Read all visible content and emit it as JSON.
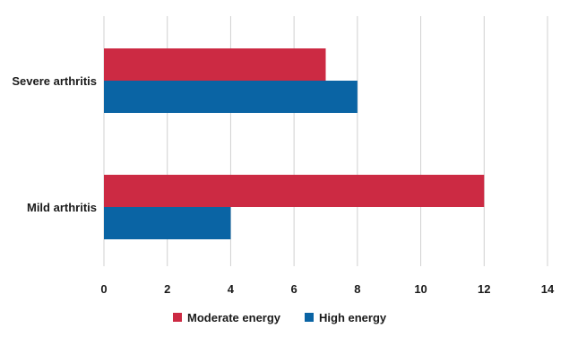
{
  "chart_data": {
    "type": "bar",
    "orientation": "horizontal",
    "categories": [
      "Severe arthritis",
      "Mild arthritis"
    ],
    "series": [
      {
        "name": "Moderate energy",
        "color": "#cc2a43",
        "values": [
          7,
          12
        ]
      },
      {
        "name": "High energy",
        "color": "#0a64a4",
        "values": [
          8,
          4
        ]
      }
    ],
    "xlim": [
      0,
      14
    ],
    "xticks": [
      "0",
      "2",
      "4",
      "6",
      "8",
      "10",
      "12",
      "14"
    ],
    "grid": true,
    "legend_position": "bottom-center"
  }
}
